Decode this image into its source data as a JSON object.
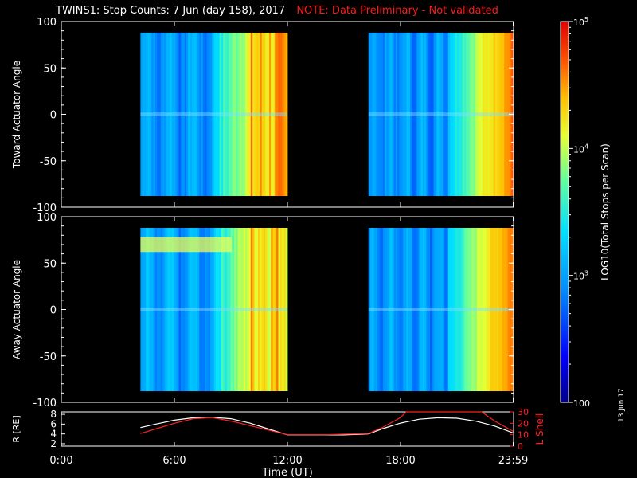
{
  "header": {
    "title": "TWINS1: Stop Counts:  7 Jun (day 158), 2017",
    "note": "NOTE: Data Preliminary - Not validated"
  },
  "datestamp": "13 Jun 17",
  "colors": {
    "background": "#000000",
    "note": "#ff1a1a",
    "r_line": "#ffffff",
    "lshell_line": "#ff2020"
  },
  "chart_data": [
    {
      "type": "heatmap",
      "id": "toward",
      "ylabel": "Toward Actuator Angle",
      "ylim": [
        -100,
        100
      ],
      "yticks": [
        100,
        50,
        0,
        -50,
        -100
      ],
      "xlim": [
        0,
        24
      ],
      "data_blocks_hours": [
        [
          4.2,
          12.0
        ],
        [
          16.3,
          23.98
        ]
      ],
      "angle_range": [
        -88,
        88
      ],
      "colorbar": {
        "label": "LOG10(Total Stops per Scan)",
        "scale": "log",
        "range": [
          100,
          100000
        ],
        "tick_labels": [
          "10^5",
          "10^4",
          "10^3",
          "100"
        ]
      }
    },
    {
      "type": "heatmap",
      "id": "away",
      "ylabel": "Away Actuator Angle",
      "ylim": [
        -100,
        100
      ],
      "yticks": [
        100,
        50,
        0,
        -50,
        -100
      ],
      "xlim": [
        0,
        24
      ],
      "data_blocks_hours": [
        [
          4.2,
          12.0
        ],
        [
          16.3,
          23.98
        ]
      ],
      "angle_range": [
        -88,
        88
      ]
    },
    {
      "type": "line",
      "id": "ephemeris",
      "xlabel": "Time (UT)",
      "xticks": [
        "0:00",
        "6:00",
        "12:00",
        "18:00",
        "23:59"
      ],
      "xtick_hours": [
        0,
        6,
        12,
        18,
        23.98
      ],
      "left_axis": {
        "label": "R [RE]",
        "ticks": [
          2,
          4,
          6,
          8
        ],
        "range": [
          1.5,
          8.5
        ]
      },
      "right_axis": {
        "label": "L Shell",
        "ticks": [
          0,
          10,
          20,
          30
        ],
        "range": [
          0,
          30
        ]
      },
      "series": [
        {
          "axis": "left",
          "x": [
            4.2,
            5,
            6,
            7,
            8,
            9,
            10,
            11,
            12,
            13,
            14,
            15,
            16.3,
            17,
            18,
            19,
            20,
            21,
            22,
            23,
            23.98
          ],
          "y": [
            5.3,
            6.0,
            6.8,
            7.3,
            7.4,
            7.1,
            6.2,
            5.0,
            3.8,
            3.8,
            3.8,
            3.8,
            4.0,
            5.0,
            6.2,
            7.0,
            7.3,
            7.2,
            6.6,
            5.6,
            4.2
          ]
        },
        {
          "axis": "right",
          "x": [
            4.2,
            5,
            6,
            7,
            8,
            9,
            10,
            11,
            12,
            13,
            14,
            15,
            16.3,
            17,
            18,
            18.3,
            22.3,
            23,
            23.98
          ],
          "y": [
            11,
            15,
            20,
            24,
            25,
            22,
            18,
            14,
            10,
            10,
            10,
            10.5,
            11,
            16,
            25,
            30,
            30,
            22,
            13
          ]
        }
      ]
    }
  ]
}
